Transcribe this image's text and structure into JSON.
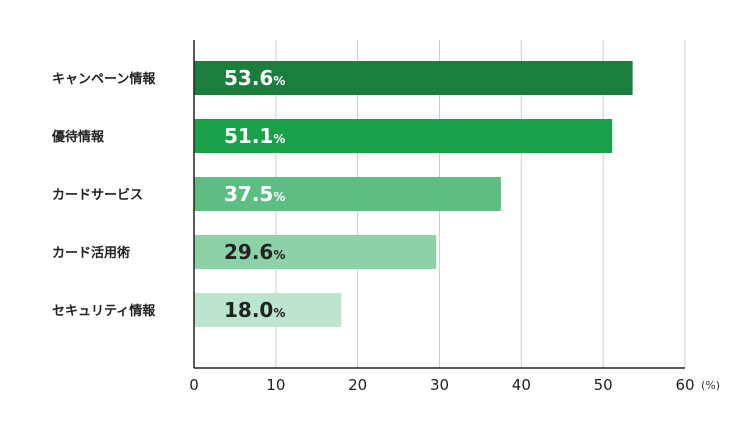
{
  "chart_data": {
    "type": "bar",
    "orientation": "horizontal",
    "categories": [
      "キャンペーン情報",
      "優待情報",
      "カードサービス",
      "カード活用術",
      "セキュリティ情報"
    ],
    "values": [
      53.6,
      51.1,
      37.5,
      29.6,
      18.0
    ],
    "value_labels": [
      "53.6",
      "51.1",
      "37.5",
      "29.6",
      "18.0"
    ],
    "value_suffix": "%",
    "colors": [
      "#1b7e3e",
      "#19a24a",
      "#5dbd82",
      "#8dd1a7",
      "#bce5cd"
    ],
    "label_text_colors": [
      "#ffffff",
      "#ffffff",
      "#ffffff",
      "#222222",
      "#222222"
    ],
    "xlim": [
      0,
      60
    ],
    "xticks": [
      0,
      10,
      20,
      30,
      40,
      50,
      60
    ],
    "xlabel": "(%)",
    "title": "",
    "grid": true
  }
}
